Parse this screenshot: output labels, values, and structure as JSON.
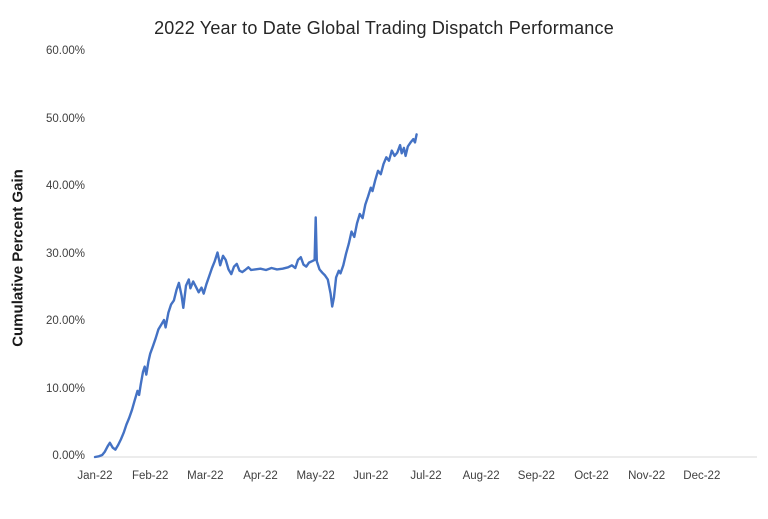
{
  "page": {
    "title": "2022 Year to Date Global Trading Dispatch Performance",
    "y_axis_title": "Cumulative Percent Gain"
  },
  "chart_data": {
    "type": "line",
    "title": "2022 Year to Date Global Trading Dispatch Performance",
    "xlabel": "",
    "ylabel": "Cumulative Percent Gain",
    "grid": false,
    "legend": "none",
    "line_color": "#4472C4",
    "axis_line_color": "#d9d9d9",
    "ylim": [
      0,
      60
    ],
    "xlim_months": [
      0,
      12
    ],
    "y_tick_labels": [
      "0.00%",
      "10.00%",
      "20.00%",
      "30.00%",
      "40.00%",
      "50.00%",
      "60.00%"
    ],
    "y_tick_values": [
      0,
      10,
      20,
      30,
      40,
      50,
      60
    ],
    "x_tick_labels": [
      "Jan-22",
      "Feb-22",
      "Mar-22",
      "Apr-22",
      "May-22",
      "Jun-22",
      "Jul-22",
      "Aug-22",
      "Sep-22",
      "Oct-22",
      "Nov-22",
      "Dec-22"
    ],
    "series": [
      {
        "name": "Cumulative Percent Gain",
        "points": [
          [
            0.0,
            0.0
          ],
          [
            0.07,
            0.1
          ],
          [
            0.13,
            0.3
          ],
          [
            0.18,
            0.8
          ],
          [
            0.23,
            1.6
          ],
          [
            0.27,
            2.1
          ],
          [
            0.32,
            1.4
          ],
          [
            0.37,
            1.1
          ],
          [
            0.42,
            1.8
          ],
          [
            0.47,
            2.6
          ],
          [
            0.52,
            3.6
          ],
          [
            0.57,
            4.8
          ],
          [
            0.62,
            5.8
          ],
          [
            0.67,
            7.0
          ],
          [
            0.72,
            8.4
          ],
          [
            0.77,
            9.8
          ],
          [
            0.8,
            9.2
          ],
          [
            0.83,
            10.8
          ],
          [
            0.87,
            12.6
          ],
          [
            0.9,
            13.4
          ],
          [
            0.93,
            12.2
          ],
          [
            0.97,
            14.2
          ],
          [
            1.0,
            15.3
          ],
          [
            1.05,
            16.4
          ],
          [
            1.1,
            17.6
          ],
          [
            1.15,
            18.9
          ],
          [
            1.2,
            19.6
          ],
          [
            1.25,
            20.3
          ],
          [
            1.28,
            19.2
          ],
          [
            1.33,
            21.4
          ],
          [
            1.38,
            22.6
          ],
          [
            1.43,
            23.2
          ],
          [
            1.48,
            24.8
          ],
          [
            1.52,
            25.8
          ],
          [
            1.57,
            23.9
          ],
          [
            1.6,
            22.1
          ],
          [
            1.65,
            25.4
          ],
          [
            1.7,
            26.3
          ],
          [
            1.73,
            25.0
          ],
          [
            1.78,
            26.0
          ],
          [
            1.83,
            25.2
          ],
          [
            1.88,
            24.4
          ],
          [
            1.93,
            25.1
          ],
          [
            1.97,
            24.2
          ],
          [
            2.02,
            25.6
          ],
          [
            2.07,
            26.8
          ],
          [
            2.12,
            28.0
          ],
          [
            2.17,
            29.0
          ],
          [
            2.22,
            30.3
          ],
          [
            2.27,
            28.4
          ],
          [
            2.32,
            29.8
          ],
          [
            2.37,
            29.2
          ],
          [
            2.42,
            27.8
          ],
          [
            2.47,
            27.1
          ],
          [
            2.52,
            28.2
          ],
          [
            2.57,
            28.6
          ],
          [
            2.62,
            27.6
          ],
          [
            2.67,
            27.4
          ],
          [
            2.72,
            27.7
          ],
          [
            2.78,
            28.1
          ],
          [
            2.83,
            27.7
          ],
          [
            2.9,
            27.8
          ],
          [
            3.0,
            27.9
          ],
          [
            3.1,
            27.7
          ],
          [
            3.2,
            28.0
          ],
          [
            3.3,
            27.8
          ],
          [
            3.4,
            27.9
          ],
          [
            3.5,
            28.1
          ],
          [
            3.57,
            28.4
          ],
          [
            3.63,
            28.0
          ],
          [
            3.68,
            29.2
          ],
          [
            3.73,
            29.6
          ],
          [
            3.78,
            28.5
          ],
          [
            3.83,
            28.2
          ],
          [
            3.88,
            28.8
          ],
          [
            3.93,
            29.0
          ],
          [
            3.98,
            29.2
          ],
          [
            4.0,
            35.5
          ],
          [
            4.02,
            29.0
          ],
          [
            4.07,
            27.8
          ],
          [
            4.12,
            27.3
          ],
          [
            4.17,
            26.9
          ],
          [
            4.22,
            26.3
          ],
          [
            4.27,
            24.2
          ],
          [
            4.3,
            22.3
          ],
          [
            4.33,
            23.6
          ],
          [
            4.37,
            26.6
          ],
          [
            4.42,
            27.6
          ],
          [
            4.45,
            27.2
          ],
          [
            4.5,
            28.4
          ],
          [
            4.55,
            30.1
          ],
          [
            4.6,
            31.6
          ],
          [
            4.65,
            33.4
          ],
          [
            4.7,
            32.6
          ],
          [
            4.75,
            34.6
          ],
          [
            4.8,
            36.0
          ],
          [
            4.85,
            35.4
          ],
          [
            4.9,
            37.4
          ],
          [
            4.95,
            38.6
          ],
          [
            5.0,
            39.9
          ],
          [
            5.03,
            39.4
          ],
          [
            5.08,
            41.0
          ],
          [
            5.13,
            42.4
          ],
          [
            5.18,
            41.9
          ],
          [
            5.23,
            43.4
          ],
          [
            5.28,
            44.4
          ],
          [
            5.33,
            43.9
          ],
          [
            5.38,
            45.4
          ],
          [
            5.43,
            44.6
          ],
          [
            5.48,
            45.1
          ],
          [
            5.53,
            46.2
          ],
          [
            5.56,
            45.0
          ],
          [
            5.6,
            45.8
          ],
          [
            5.63,
            44.6
          ],
          [
            5.67,
            46.0
          ],
          [
            5.72,
            46.6
          ],
          [
            5.77,
            47.1
          ],
          [
            5.8,
            46.6
          ],
          [
            5.83,
            47.8
          ]
        ]
      }
    ]
  }
}
